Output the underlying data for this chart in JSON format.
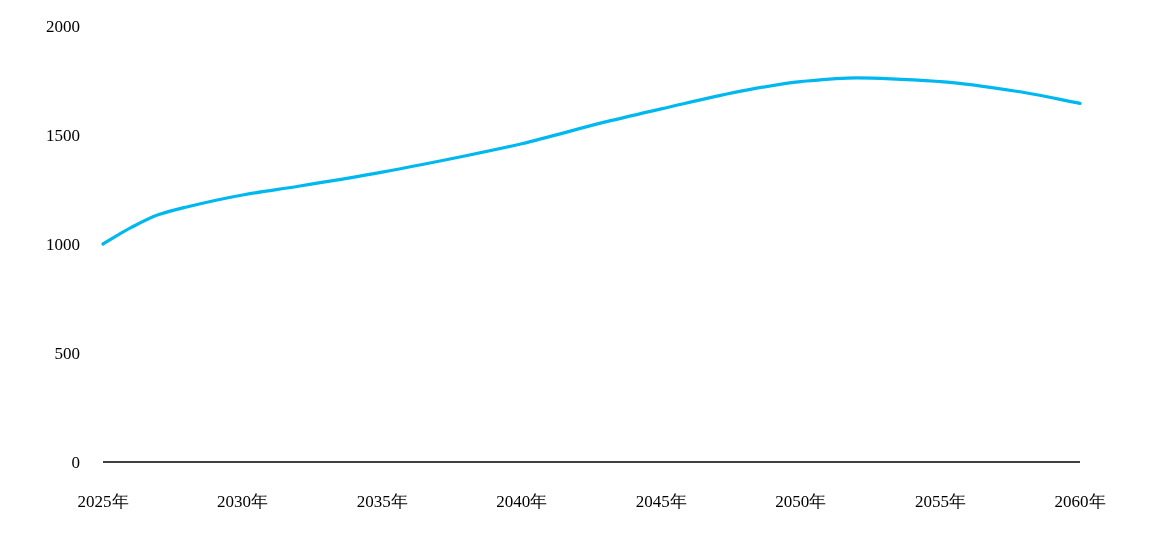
{
  "chart_data": {
    "type": "line",
    "x": [
      2025,
      2026,
      2027,
      2028,
      2030,
      2032,
      2035,
      2038,
      2040,
      2043,
      2045,
      2048,
      2050,
      2052,
      2055,
      2058,
      2060
    ],
    "series": [
      {
        "color": "#00b8f0",
        "values": [
          1000,
          1075,
          1135,
          1170,
          1225,
          1265,
          1330,
          1405,
          1460,
          1560,
          1620,
          1705,
          1745,
          1762,
          1745,
          1695,
          1645
        ]
      }
    ],
    "xlim": [
      2025,
      2060
    ],
    "xticks": [
      {
        "value": 2025,
        "label": "2025年"
      },
      {
        "value": 2030,
        "label": "2030年"
      },
      {
        "value": 2035,
        "label": "2035年"
      },
      {
        "value": 2040,
        "label": "2040年"
      },
      {
        "value": 2045,
        "label": "2045年"
      },
      {
        "value": 2050,
        "label": "2050年"
      },
      {
        "value": 2055,
        "label": "2055年"
      },
      {
        "value": 2060,
        "label": "2060年"
      }
    ],
    "ylim": [
      0,
      2000
    ],
    "yticks": [
      0,
      500,
      1000,
      1500,
      2000
    ]
  }
}
